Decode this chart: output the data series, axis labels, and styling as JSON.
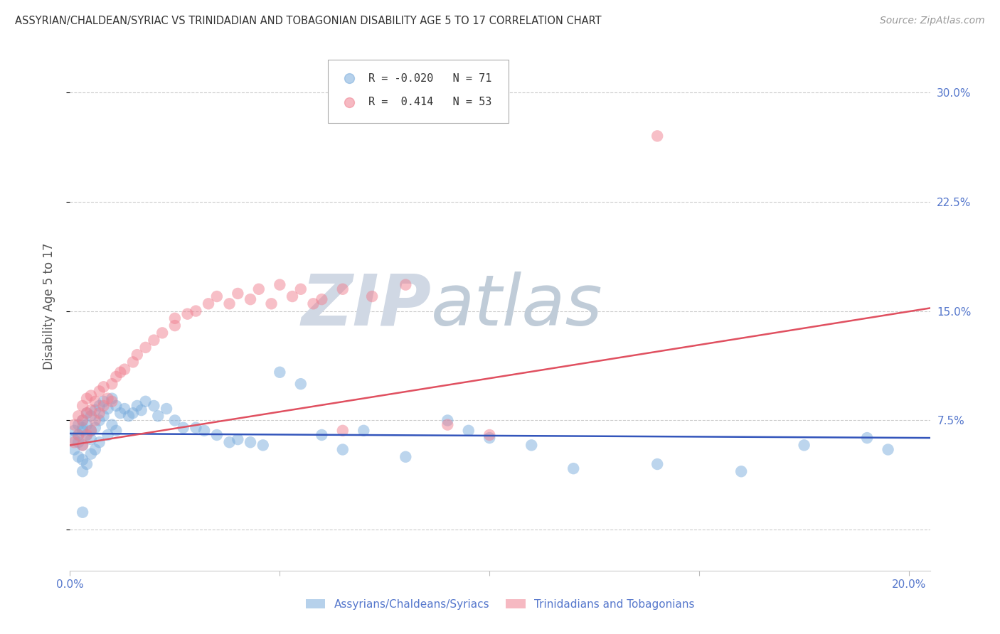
{
  "title": "ASSYRIAN/CHALDEAN/SYRIAC VS TRINIDADIAN AND TOBAGONIAN DISABILITY AGE 5 TO 17 CORRELATION CHART",
  "source": "Source: ZipAtlas.com",
  "ylabel": "Disability Age 5 to 17",
  "xlim": [
    0.0,
    0.205
  ],
  "ylim": [
    -0.028,
    0.335
  ],
  "yticks": [
    0.0,
    0.075,
    0.15,
    0.225,
    0.3
  ],
  "ytick_labels": [
    "",
    "7.5%",
    "15.0%",
    "22.5%",
    "30.0%"
  ],
  "xticks": [
    0.0,
    0.05,
    0.1,
    0.15,
    0.2
  ],
  "xtick_labels": [
    "0.0%",
    "",
    "",
    "",
    "20.0%"
  ],
  "grid_color": "#cccccc",
  "background_color": "#ffffff",
  "blue_color": "#7aacdc",
  "pink_color": "#f08090",
  "line_blue_color": "#3355bb",
  "line_pink_color": "#e05060",
  "blue_label": "Assyrians/Chaldeans/Syriacs",
  "pink_label": "Trinidadians and Tobagonians",
  "blue_R": -0.02,
  "blue_N": 71,
  "pink_R": 0.414,
  "pink_N": 53,
  "axis_label_color": "#5577cc",
  "title_color": "#333333",
  "blue_line_y_start": 0.066,
  "blue_line_y_end": 0.063,
  "pink_line_y_start": 0.058,
  "pink_line_y_end": 0.152,
  "blue_scatter_x": [
    0.001,
    0.001,
    0.001,
    0.002,
    0.002,
    0.002,
    0.002,
    0.003,
    0.003,
    0.003,
    0.003,
    0.003,
    0.003,
    0.004,
    0.004,
    0.004,
    0.004,
    0.005,
    0.005,
    0.005,
    0.005,
    0.006,
    0.006,
    0.006,
    0.007,
    0.007,
    0.007,
    0.008,
    0.008,
    0.009,
    0.009,
    0.01,
    0.01,
    0.011,
    0.011,
    0.012,
    0.013,
    0.014,
    0.015,
    0.016,
    0.017,
    0.018,
    0.02,
    0.021,
    0.023,
    0.025,
    0.027,
    0.03,
    0.032,
    0.035,
    0.038,
    0.04,
    0.043,
    0.046,
    0.05,
    0.055,
    0.06,
    0.065,
    0.07,
    0.08,
    0.09,
    0.095,
    0.1,
    0.11,
    0.12,
    0.14,
    0.16,
    0.175,
    0.19,
    0.195,
    0.003
  ],
  "blue_scatter_y": [
    0.068,
    0.062,
    0.055,
    0.072,
    0.065,
    0.06,
    0.05,
    0.075,
    0.07,
    0.068,
    0.058,
    0.048,
    0.04,
    0.08,
    0.072,
    0.065,
    0.045,
    0.078,
    0.068,
    0.062,
    0.052,
    0.082,
    0.07,
    0.055,
    0.085,
    0.075,
    0.06,
    0.088,
    0.078,
    0.083,
    0.065,
    0.09,
    0.072,
    0.085,
    0.068,
    0.08,
    0.083,
    0.078,
    0.08,
    0.085,
    0.082,
    0.088,
    0.085,
    0.078,
    0.083,
    0.075,
    0.07,
    0.07,
    0.068,
    0.065,
    0.06,
    0.062,
    0.06,
    0.058,
    0.108,
    0.1,
    0.065,
    0.055,
    0.068,
    0.05,
    0.075,
    0.068,
    0.063,
    0.058,
    0.042,
    0.045,
    0.04,
    0.058,
    0.063,
    0.055,
    0.012
  ],
  "pink_scatter_x": [
    0.001,
    0.001,
    0.002,
    0.002,
    0.003,
    0.003,
    0.003,
    0.004,
    0.004,
    0.004,
    0.005,
    0.005,
    0.005,
    0.006,
    0.006,
    0.007,
    0.007,
    0.008,
    0.008,
    0.009,
    0.01,
    0.01,
    0.011,
    0.012,
    0.013,
    0.015,
    0.016,
    0.018,
    0.02,
    0.022,
    0.025,
    0.025,
    0.028,
    0.03,
    0.033,
    0.035,
    0.038,
    0.04,
    0.043,
    0.045,
    0.048,
    0.05,
    0.053,
    0.055,
    0.058,
    0.06,
    0.065,
    0.072,
    0.08,
    0.09,
    0.1,
    0.14,
    0.065
  ],
  "pink_scatter_y": [
    0.072,
    0.06,
    0.078,
    0.065,
    0.085,
    0.075,
    0.058,
    0.09,
    0.08,
    0.065,
    0.092,
    0.082,
    0.068,
    0.088,
    0.075,
    0.095,
    0.08,
    0.098,
    0.085,
    0.09,
    0.1,
    0.088,
    0.105,
    0.108,
    0.11,
    0.115,
    0.12,
    0.125,
    0.13,
    0.135,
    0.14,
    0.145,
    0.148,
    0.15,
    0.155,
    0.16,
    0.155,
    0.162,
    0.158,
    0.165,
    0.155,
    0.168,
    0.16,
    0.165,
    0.155,
    0.158,
    0.165,
    0.16,
    0.168,
    0.072,
    0.065,
    0.27,
    0.068
  ],
  "watermark_zip": "ZIP",
  "watermark_atlas": "atlas"
}
